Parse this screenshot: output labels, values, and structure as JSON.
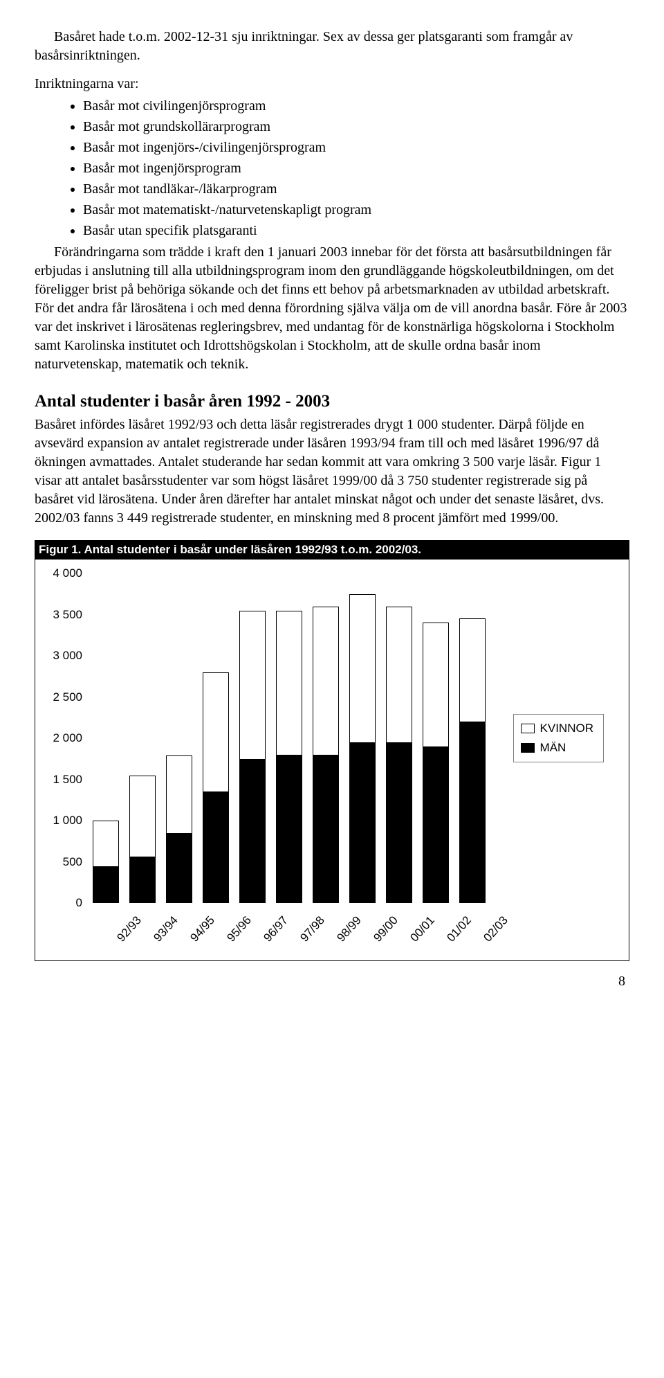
{
  "intro": {
    "p1": "Basåret hade t.o.m. 2002-12-31 sju inriktningar. Sex av dessa ger platsgaranti som framgår av basårsinriktningen.",
    "lead": "Inriktningarna var:",
    "bullets": [
      "Basår mot civilingenjörsprogram",
      "Basår mot grundskollärarprogram",
      "Basår mot ingenjörs-/civilingenjörsprogram",
      "Basår mot ingenjörsprogram",
      "Basår mot tandläkar-/läkarprogram",
      "Basår mot matematiskt-/naturvetenskapligt program",
      "Basår utan specifik platsgaranti"
    ],
    "p2": "Förändringarna som trädde i kraft den 1 januari 2003 innebar för det första att basårsutbildningen får erbjudas i anslutning till alla utbildningsprogram inom den grundläggande högskoleutbildningen, om det föreligger brist på behöriga sökande och det finns ett behov på arbetsmarknaden av utbildad arbetskraft. För det andra får lärosätena i och med denna förordning själva välja om de vill anordna basår. Före år 2003 var det inskrivet i lärosätenas regleringsbrev, med undantag för de konstnärliga högskolorna i Stockholm samt Karolinska institutet och Idrottshögskolan i Stockholm, att de skulle ordna basår inom naturvetenskap, matematik och teknik."
  },
  "section2": {
    "heading": "Antal studenter i basår åren 1992 - 2003",
    "p1": "Basåret infördes läsåret 1992/93 och detta läsår registrerades drygt 1 000 studenter. Därpå följde en avsevärd expansion av antalet registrerade under läsåren 1993/94 fram till och med läsåret 1996/97 då ökningen avmattades. Antalet studerande har sedan kommit att vara omkring 3 500 varje läsår. Figur 1 visar att antalet basårsstudenter var som högst läsåret 1999/00 då 3 750 studenter registrerade sig på basåret vid lärosätena. Under åren därefter har antalet minskat något och under det senaste läsåret, dvs. 2002/03 fanns 3 449 registrerade studenter, en minskning med 8 procent jämfört med 1999/00."
  },
  "figure": {
    "caption": "Figur 1. Antal studenter i basår under läsåren 1992/93 t.o.m. 2002/03.",
    "legend": {
      "women": "KVINNOR",
      "men": "MÄN"
    }
  },
  "chart": {
    "type": "stacked-bar",
    "ymax": 4000,
    "ymin": 0,
    "ytick_step": 500,
    "yticks": [
      "4 000",
      "3 500",
      "3 000",
      "2 500",
      "2 000",
      "1 500",
      "1 000",
      "500",
      "0"
    ],
    "categories": [
      "92/93",
      "93/94",
      "94/95",
      "95/96",
      "96/97",
      "97/98",
      "98/99",
      "99/00",
      "00/01",
      "01/02",
      "02/03"
    ],
    "men": [
      450,
      560,
      850,
      1350,
      1750,
      1800,
      1800,
      1950,
      1950,
      1900,
      2200
    ],
    "women": [
      550,
      990,
      940,
      1450,
      1800,
      1750,
      1800,
      1800,
      1650,
      1500,
      1250
    ],
    "bar_outline": "#000000",
    "men_color": "#000000",
    "women_color": "#ffffff",
    "background": "#ffffff",
    "font_family": "Arial",
    "axis_fontsize": 17
  },
  "page_number": "8"
}
